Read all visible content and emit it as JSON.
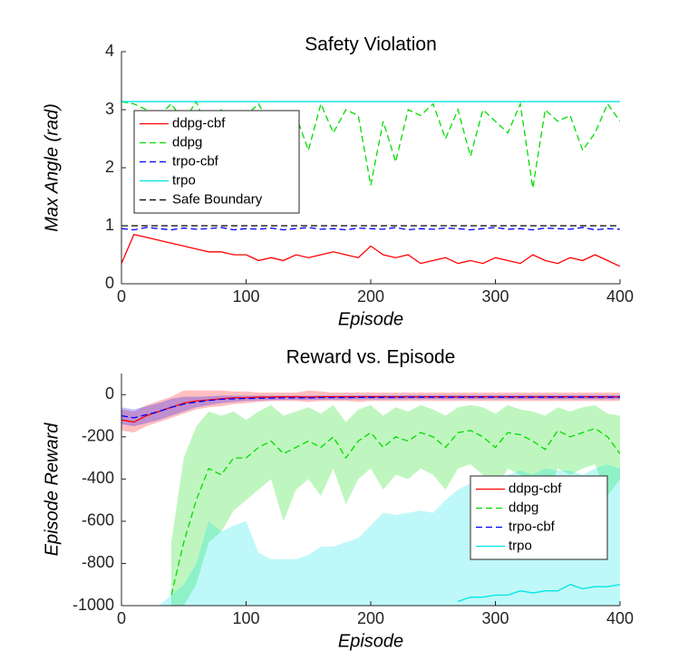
{
  "chart_data": [
    {
      "type": "line",
      "title": "Safety Violation",
      "xlabel": "Episode",
      "ylabel": "Max Angle (rad)",
      "x": [
        0,
        10,
        20,
        30,
        40,
        50,
        60,
        70,
        80,
        90,
        100,
        110,
        120,
        130,
        140,
        150,
        160,
        170,
        180,
        190,
        200,
        210,
        220,
        230,
        240,
        250,
        260,
        270,
        280,
        290,
        300,
        310,
        320,
        330,
        340,
        350,
        360,
        370,
        380,
        390,
        400
      ],
      "xlim": [
        0,
        400
      ],
      "xticks": [
        0,
        100,
        200,
        300,
        400
      ],
      "ylim": [
        0,
        4
      ],
      "yticks": [
        0,
        1,
        2,
        3,
        4
      ],
      "legend": "upper left",
      "series": [
        {
          "name": "ddpg-cbf",
          "color": "#ff0000",
          "dash": "solid",
          "values": [
            0.35,
            0.85,
            0.8,
            0.75,
            0.7,
            0.65,
            0.6,
            0.55,
            0.55,
            0.5,
            0.5,
            0.4,
            0.45,
            0.4,
            0.5,
            0.45,
            0.5,
            0.55,
            0.5,
            0.45,
            0.65,
            0.5,
            0.45,
            0.5,
            0.35,
            0.4,
            0.45,
            0.35,
            0.4,
            0.35,
            0.45,
            0.4,
            0.35,
            0.5,
            0.4,
            0.35,
            0.45,
            0.4,
            0.5,
            0.4,
            0.3
          ]
        },
        {
          "name": "ddpg",
          "color": "#00dd00",
          "dash": "dashed",
          "values": [
            3.14,
            3.1,
            3.0,
            2.9,
            3.1,
            2.8,
            3.14,
            2.6,
            3.0,
            2.8,
            2.9,
            3.1,
            2.7,
            3.0,
            2.9,
            2.3,
            3.1,
            2.6,
            3.0,
            2.9,
            1.7,
            2.8,
            2.1,
            3.0,
            2.9,
            3.1,
            2.5,
            3.0,
            2.2,
            3.0,
            2.8,
            2.6,
            3.1,
            1.65,
            3.0,
            2.8,
            2.9,
            2.3,
            2.6,
            3.1,
            2.8
          ]
        },
        {
          "name": "trpo-cbf",
          "color": "#0000ff",
          "dash": "dashed",
          "values": [
            0.95,
            0.93,
            0.97,
            0.95,
            0.93,
            0.96,
            0.94,
            0.95,
            0.97,
            0.93,
            0.95,
            0.94,
            0.96,
            0.93,
            0.95,
            0.97,
            0.94,
            0.95,
            0.93,
            0.96,
            0.95,
            0.94,
            0.97,
            0.93,
            0.95,
            0.94,
            0.96,
            0.95,
            0.93,
            0.95,
            0.97,
            0.94,
            0.95,
            0.93,
            0.96,
            0.95,
            0.94,
            0.97,
            0.93,
            0.95,
            0.94
          ]
        },
        {
          "name": "trpo",
          "color": "#00e5e5",
          "dash": "solid",
          "values": [
            3.14,
            3.14,
            3.14,
            3.14,
            3.14,
            3.14,
            3.14,
            3.14,
            3.14,
            3.14,
            3.14,
            3.14,
            3.14,
            3.14,
            3.14,
            3.14,
            3.14,
            3.14,
            3.14,
            3.14,
            3.14,
            3.14,
            3.14,
            3.14,
            3.14,
            3.14,
            3.14,
            3.14,
            3.14,
            3.14,
            3.14,
            3.14,
            3.14,
            3.14,
            3.14,
            3.14,
            3.14,
            3.14,
            3.14,
            3.14,
            3.14
          ]
        },
        {
          "name": "Safe Boundary",
          "color": "#000000",
          "dash": "dashed",
          "values": [
            1,
            1,
            1,
            1,
            1,
            1,
            1,
            1,
            1,
            1,
            1,
            1,
            1,
            1,
            1,
            1,
            1,
            1,
            1,
            1,
            1,
            1,
            1,
            1,
            1,
            1,
            1,
            1,
            1,
            1,
            1,
            1,
            1,
            1,
            1,
            1,
            1,
            1,
            1,
            1,
            1
          ]
        }
      ]
    },
    {
      "type": "line",
      "title": "Reward vs. Episode",
      "xlabel": "Episode",
      "ylabel": "Episode Reward",
      "x": [
        0,
        10,
        20,
        30,
        40,
        50,
        60,
        70,
        80,
        90,
        100,
        110,
        120,
        130,
        140,
        150,
        160,
        170,
        180,
        190,
        200,
        210,
        220,
        230,
        240,
        250,
        260,
        270,
        280,
        290,
        300,
        310,
        320,
        330,
        340,
        350,
        360,
        370,
        380,
        390,
        400
      ],
      "xlim": [
        0,
        400
      ],
      "xticks": [
        0,
        100,
        200,
        300,
        400
      ],
      "ylim": [
        -1000,
        100
      ],
      "yticks": [
        -1000,
        -800,
        -600,
        -400,
        -200,
        0
      ],
      "legend": "lower right",
      "series": [
        {
          "name": "ddpg-cbf",
          "color": "#ff0000",
          "dash": "solid",
          "values": [
            -120,
            -130,
            -100,
            -80,
            -60,
            -40,
            -30,
            -25,
            -20,
            -15,
            -15,
            -12,
            -12,
            -10,
            -10,
            -12,
            -10,
            -10,
            -10,
            -10,
            -10,
            -10,
            -10,
            -10,
            -10,
            -10,
            -10,
            -10,
            -10,
            -10,
            -10,
            -10,
            -10,
            -10,
            -10,
            -10,
            -10,
            -10,
            -10,
            -10,
            -10
          ],
          "lower": [
            -170,
            -180,
            -150,
            -130,
            -110,
            -90,
            -70,
            -60,
            -55,
            -45,
            -40,
            -35,
            -30,
            -30,
            -30,
            -35,
            -30,
            -30,
            -30,
            -35,
            -30,
            -30,
            -30,
            -30,
            -30,
            -30,
            -30,
            -30,
            -30,
            -30,
            -30,
            -30,
            -30,
            -30,
            -30,
            -30,
            -30,
            -30,
            -30,
            -30,
            -30
          ],
          "upper": [
            -70,
            -80,
            -50,
            -30,
            -10,
            20,
            20,
            20,
            20,
            15,
            15,
            10,
            10,
            10,
            10,
            20,
            15,
            10,
            10,
            10,
            10,
            10,
            10,
            10,
            10,
            10,
            10,
            10,
            10,
            10,
            10,
            10,
            10,
            10,
            10,
            10,
            10,
            10,
            10,
            10,
            10
          ]
        },
        {
          "name": "ddpg",
          "color": "#00dd00",
          "dash": "dashed",
          "values": [
            null,
            null,
            null,
            null,
            -950,
            -700,
            -500,
            -350,
            -380,
            -300,
            -300,
            -250,
            -220,
            -280,
            -250,
            -220,
            -250,
            -200,
            -300,
            -220,
            -180,
            -250,
            -200,
            -220,
            -180,
            -200,
            -250,
            -180,
            -170,
            -200,
            -250,
            -180,
            -190,
            -220,
            -260,
            -170,
            -200,
            -180,
            -160,
            -200,
            -280
          ],
          "lower": [
            null,
            null,
            null,
            null,
            -1000,
            -1000,
            -900,
            -700,
            -650,
            -550,
            -500,
            -450,
            -400,
            -600,
            -450,
            -400,
            -480,
            -350,
            -520,
            -400,
            -350,
            -450,
            -380,
            -400,
            -350,
            -380,
            -450,
            -350,
            -330,
            -380,
            -450,
            -350,
            -380,
            -450,
            -500,
            -350,
            -380,
            -350,
            -330,
            -480,
            -400
          ],
          "upper": [
            null,
            null,
            null,
            null,
            -700,
            -300,
            -150,
            -80,
            -100,
            -80,
            -120,
            -80,
            -50,
            -100,
            -80,
            -60,
            -90,
            -50,
            -130,
            -70,
            -50,
            -100,
            -60,
            -80,
            -50,
            -70,
            -100,
            -60,
            -50,
            -60,
            -90,
            -50,
            -70,
            -80,
            -100,
            -60,
            -80,
            -60,
            -50,
            -90,
            -100
          ]
        },
        {
          "name": "trpo-cbf",
          "color": "#0000ff",
          "dash": "dashed",
          "values": [
            -100,
            -110,
            -95,
            -80,
            -60,
            -45,
            -35,
            -28,
            -22,
            -20,
            -18,
            -17,
            -16,
            -15,
            -15,
            -15,
            -14,
            -14,
            -14,
            -13,
            -13,
            -13,
            -13,
            -12,
            -12,
            -12,
            -12,
            -12,
            -12,
            -12,
            -12,
            -12,
            -12,
            -12,
            -12,
            -12,
            -12,
            -12,
            -12,
            -12,
            -12
          ],
          "lower": [
            -140,
            -150,
            -135,
            -120,
            -100,
            -80,
            -60,
            -50,
            -40,
            -35,
            -30,
            -28,
            -26,
            -25,
            -25,
            -25,
            -24,
            -24,
            -24,
            -23,
            -23,
            -23,
            -23,
            -22,
            -22,
            -22,
            -22,
            -22,
            -22,
            -22,
            -22,
            -22,
            -22,
            -22,
            -22,
            -22,
            -22,
            -22,
            -22,
            -22,
            -22
          ],
          "upper": [
            -60,
            -70,
            -55,
            -40,
            -20,
            -10,
            -10,
            -8,
            -5,
            -5,
            -5,
            -5,
            -5,
            -5,
            -5,
            -5,
            -4,
            -4,
            -4,
            -3,
            -3,
            -3,
            -3,
            -2,
            -2,
            -2,
            -2,
            -2,
            -2,
            -2,
            -2,
            -2,
            -2,
            -2,
            -2,
            -2,
            -2,
            -2,
            -2,
            -2,
            -2
          ]
        },
        {
          "name": "trpo",
          "color": "#00e5e5",
          "dash": "solid",
          "values": [
            null,
            null,
            null,
            null,
            null,
            null,
            null,
            null,
            null,
            null,
            null,
            null,
            null,
            null,
            null,
            null,
            null,
            null,
            null,
            null,
            null,
            null,
            null,
            null,
            null,
            null,
            null,
            -980,
            -960,
            -960,
            -950,
            -950,
            -930,
            -940,
            -930,
            -930,
            -900,
            -920,
            -910,
            -910,
            -900
          ],
          "lower": [
            null,
            null,
            null,
            -1000,
            -1000,
            -1000,
            -1000,
            -1000,
            -1000,
            -1000,
            -1000,
            -1000,
            -1000,
            -1000,
            -1000,
            -1000,
            -1000,
            -1000,
            -1000,
            -1000,
            -1000,
            -1000,
            -1000,
            -1000,
            -1000,
            -1000,
            -1000,
            -1000,
            -1000,
            -1000,
            -1000,
            -1000,
            -1000,
            -1000,
            -1000,
            -1000,
            -1000,
            -1000,
            -1000,
            -1000,
            -1000
          ],
          "upper": [
            null,
            null,
            null,
            -1000,
            -950,
            -900,
            -800,
            -600,
            -650,
            -620,
            -600,
            -750,
            -780,
            -780,
            -780,
            -760,
            -720,
            -720,
            -700,
            -680,
            -620,
            -560,
            -570,
            -560,
            -550,
            -560,
            -500,
            -450,
            -420,
            -400,
            -450,
            -380,
            -360,
            -380,
            -350,
            -360,
            -360,
            -380,
            -350,
            -330,
            -350
          ]
        }
      ]
    }
  ]
}
